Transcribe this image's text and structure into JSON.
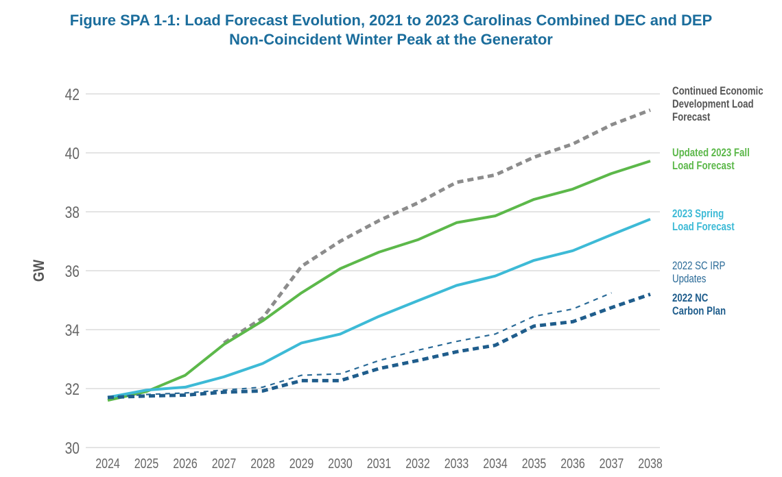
{
  "title_line1": "Figure SPA 1-1: Load Forecast Evolution, 2021 to 2023 Carolinas Combined DEC and DEP",
  "title_line2": "Non-Coincident Winter Peak at the Generator",
  "chart_data": {
    "type": "line",
    "title": "Figure SPA 1-1: Load Forecast Evolution, 2021 to 2023 Carolinas Combined DEC and DEP Non-Coincident Winter Peak at the Generator",
    "xlabel": "",
    "ylabel": "GW",
    "ylim": [
      30,
      42
    ],
    "yticks": [
      "30",
      "32",
      "34",
      "36",
      "38",
      "40",
      "42"
    ],
    "categories": [
      "2024",
      "2025",
      "2026",
      "2027",
      "2028",
      "2029",
      "2030",
      "2031",
      "2032",
      "2033",
      "2034",
      "2035",
      "2036",
      "2037",
      "2038"
    ],
    "grid": "horizontal",
    "legend_placement": "right (labels at line ends)",
    "series": [
      {
        "name": "Continued Economic Development Load Forecast",
        "color": "#8c8c8c",
        "style": "dashed-thick",
        "values": [
          null,
          null,
          null,
          33.55,
          34.4,
          36.15,
          37.0,
          37.7,
          38.3,
          39.0,
          39.25,
          39.85,
          40.3,
          40.95,
          41.45
        ]
      },
      {
        "name": "Updated 2023 Fall Load Forecast",
        "color": "#5cb84a",
        "style": "solid",
        "values": [
          31.6,
          31.9,
          32.45,
          33.5,
          34.3,
          35.25,
          36.07,
          36.63,
          37.05,
          37.63,
          37.86,
          38.42,
          38.77,
          39.3,
          39.72
        ]
      },
      {
        "name": "2023 Spring Load Forecast",
        "color": "#3dbad6",
        "style": "solid",
        "values": [
          31.7,
          31.95,
          32.05,
          32.4,
          32.85,
          33.55,
          33.85,
          34.45,
          34.98,
          35.5,
          35.82,
          36.35,
          36.68,
          37.22,
          37.75
        ]
      },
      {
        "name": "2022 SC IRP Updates",
        "color": "#2a6a97",
        "style": "dashed-thin",
        "values": [
          31.7,
          31.8,
          31.85,
          31.95,
          32.05,
          32.45,
          32.5,
          32.95,
          33.3,
          33.6,
          33.85,
          34.45,
          34.7,
          35.25,
          null
        ]
      },
      {
        "name": "2022 NC Carbon Plan",
        "color": "#1f5d8c",
        "style": "dashed-thick",
        "values": [
          31.7,
          31.75,
          31.78,
          31.88,
          31.92,
          32.27,
          32.27,
          32.68,
          32.95,
          33.25,
          33.47,
          34.12,
          34.27,
          34.75,
          35.2
        ]
      }
    ]
  },
  "legend": [
    {
      "lines": [
        "Continued Economic",
        "Development Load",
        "Forecast"
      ],
      "color": "#555555",
      "bold": true
    },
    {
      "lines": [
        "Updated 2023 Fall",
        "Load Forecast"
      ],
      "color": "#5cb84a",
      "bold": true
    },
    {
      "lines": [
        "2023 Spring",
        "Load Forecast"
      ],
      "color": "#3dbad6",
      "bold": true
    },
    {
      "lines": [
        "2022 SC IRP",
        "Updates"
      ],
      "color": "#2a6a97",
      "bold": false
    },
    {
      "lines": [
        "2022 NC",
        "Carbon Plan"
      ],
      "color": "#1f5d8c",
      "bold": true
    }
  ]
}
